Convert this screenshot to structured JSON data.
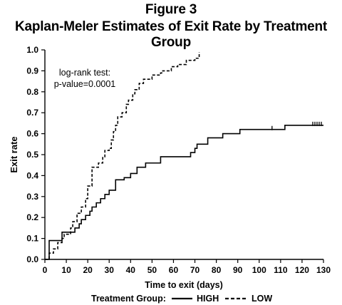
{
  "figure_label": "Figure 3",
  "chart_data": {
    "type": "line",
    "title": "Kaplan-Meler Estimates of Exit Rate by Treatment Group",
    "xlabel": "Time to exit (days)",
    "ylabel": "Exit rate",
    "xlim": [
      0,
      130
    ],
    "ylim": [
      0,
      1.0
    ],
    "x_ticks": [
      0,
      10,
      20,
      30,
      40,
      50,
      60,
      70,
      80,
      90,
      100,
      110,
      120,
      130
    ],
    "y_ticks": [
      "0.0",
      "0.1",
      "0.2",
      "0.3",
      "0.4",
      "0.5",
      "0.6",
      "0.7",
      "0.8",
      "0.9",
      "1.0"
    ],
    "step": true,
    "grid": false,
    "legend_title": "Treatment Group:",
    "legend_position": "bottom",
    "annotation": [
      "log-rank test:",
      "p-value=0.0001"
    ],
    "series": [
      {
        "name": "HIGH",
        "line_style": "solid",
        "x": [
          0,
          2,
          8,
          14,
          16,
          17,
          19,
          21,
          22,
          24,
          26,
          28,
          30,
          33,
          37,
          40,
          43,
          47,
          54,
          68,
          70,
          71,
          76,
          83,
          91,
          112,
          130
        ],
        "y": [
          0,
          0.09,
          0.13,
          0.15,
          0.17,
          0.19,
          0.21,
          0.23,
          0.25,
          0.27,
          0.29,
          0.31,
          0.33,
          0.38,
          0.39,
          0.41,
          0.44,
          0.46,
          0.49,
          0.51,
          0.53,
          0.55,
          0.58,
          0.6,
          0.62,
          0.64,
          0.64
        ],
        "censor_x": [
          106,
          125,
          126,
          127,
          128,
          129
        ]
      },
      {
        "name": "LOW",
        "line_style": "dashed",
        "x": [
          0,
          2,
          4,
          6,
          8,
          9,
          12,
          13,
          15,
          17,
          19,
          20,
          22,
          25,
          27,
          28,
          30,
          31,
          32,
          33,
          34,
          36,
          38,
          39,
          41,
          42,
          44,
          46,
          50,
          54,
          55,
          59,
          62,
          66,
          70,
          72
        ],
        "y": [
          0,
          0.03,
          0.05,
          0.08,
          0.1,
          0.12,
          0.15,
          0.18,
          0.22,
          0.25,
          0.29,
          0.35,
          0.44,
          0.46,
          0.49,
          0.52,
          0.53,
          0.57,
          0.61,
          0.64,
          0.68,
          0.7,
          0.74,
          0.76,
          0.79,
          0.81,
          0.84,
          0.86,
          0.88,
          0.89,
          0.9,
          0.92,
          0.93,
          0.95,
          0.96,
          0.99
        ]
      }
    ]
  }
}
